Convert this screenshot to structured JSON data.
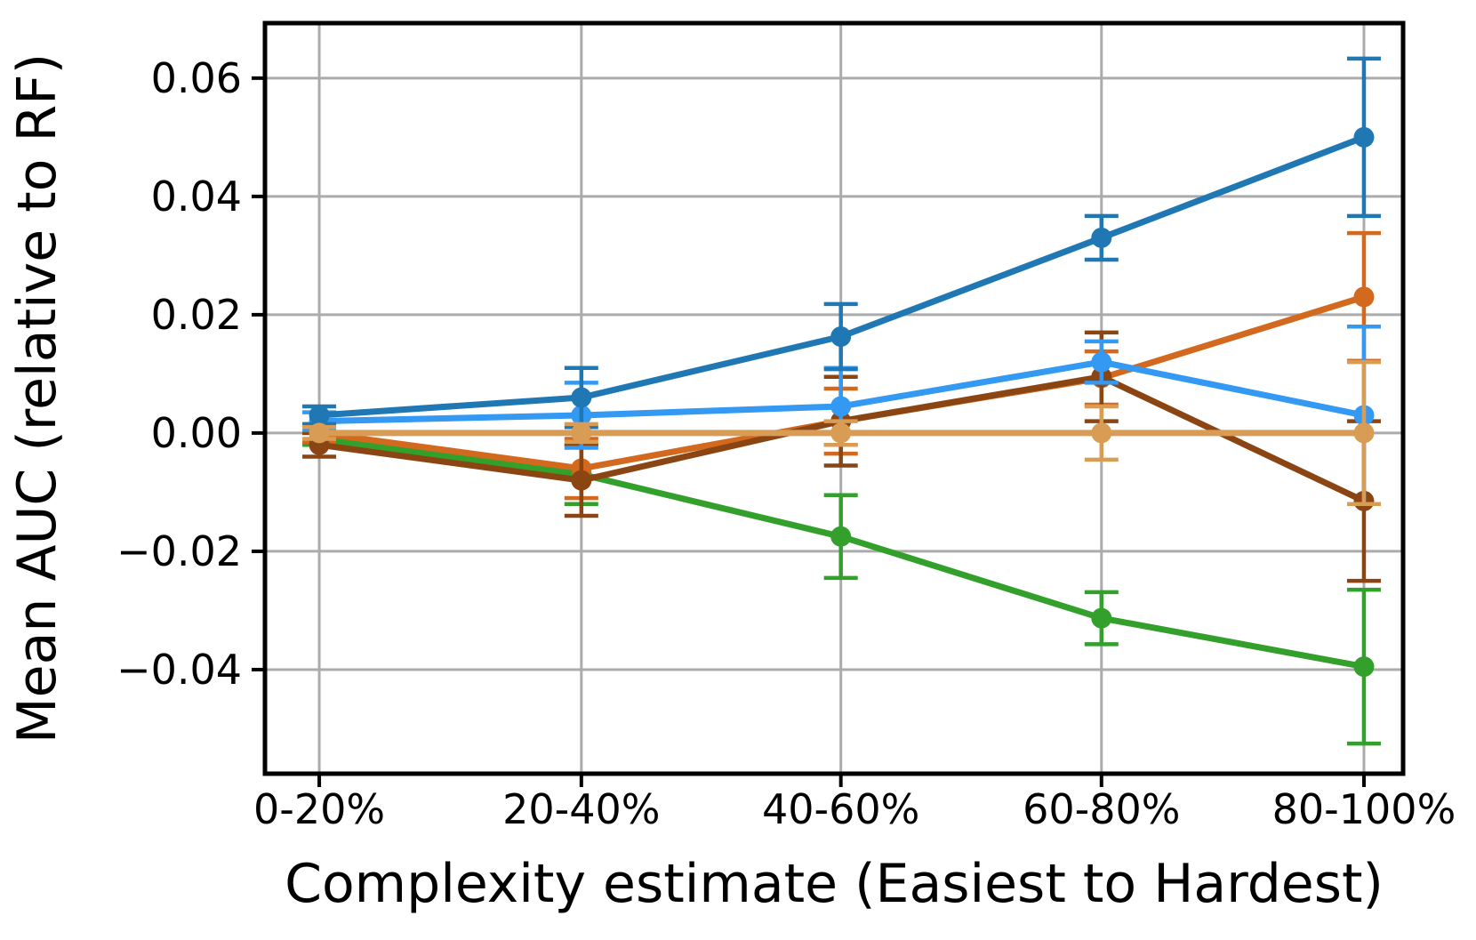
{
  "chart_data": {
    "type": "line",
    "title": "",
    "xlabel": "Complexity estimate (Easiest to Hardest)",
    "ylabel": "Mean AUC (relative to RF)",
    "categories": [
      "0-20%",
      "20-40%",
      "40-60%",
      "60-80%",
      "80-100%"
    ],
    "y_ticks": [
      {
        "value": 0.06,
        "label": "0.06"
      },
      {
        "value": 0.04,
        "label": "0.04"
      },
      {
        "value": 0.02,
        "label": "0.02"
      },
      {
        "value": 0.0,
        "label": "0.00"
      },
      {
        "value": -0.02,
        "label": "−0.02"
      },
      {
        "value": -0.04,
        "label": "−0.04"
      }
    ],
    "ylim": [
      -0.0576,
      0.0693
    ],
    "grid": true,
    "legend": "none",
    "series": [
      {
        "name": "dark-blue",
        "color": "#1f77b4",
        "values": [
          0.003,
          0.006,
          0.0163,
          0.033,
          0.05
        ],
        "errors": [
          0.0015,
          0.005,
          0.0055,
          0.0037,
          0.0133
        ]
      },
      {
        "name": "light-blue",
        "color": "#3399f3",
        "values": [
          0.002,
          0.003,
          0.0045,
          0.012,
          0.003
        ],
        "errors": [
          0.0015,
          0.0055,
          0.0065,
          0.0035,
          0.015
        ]
      },
      {
        "name": "orange",
        "color": "#d2691e",
        "values": [
          0.0,
          -0.006,
          0.002,
          0.0093,
          0.023
        ],
        "errors": [
          0.0015,
          0.005,
          0.0055,
          0.0045,
          0.0108
        ]
      },
      {
        "name": "tan",
        "color": "#d99c55",
        "values": [
          0.0,
          0.0,
          0.0,
          0.0,
          0.0
        ],
        "errors": [
          0.001,
          0.0015,
          0.002,
          0.0045,
          0.012
        ]
      },
      {
        "name": "brown",
        "color": "#8b4513",
        "values": [
          -0.002,
          -0.008,
          0.002,
          0.0095,
          -0.0115
        ],
        "errors": [
          0.002,
          0.006,
          0.0075,
          0.0075,
          0.0135
        ]
      },
      {
        "name": "green",
        "color": "#33a02c",
        "values": [
          -0.001,
          -0.007,
          -0.0175,
          -0.0313,
          -0.0395
        ],
        "errors": [
          0.001,
          0.005,
          0.007,
          0.0044,
          0.013
        ]
      }
    ],
    "draw_order": [
      "green",
      "orange",
      "brown",
      "light-blue",
      "dark-blue",
      "tan"
    ],
    "grid_color": "#ababab",
    "spine_color": "#000000"
  }
}
